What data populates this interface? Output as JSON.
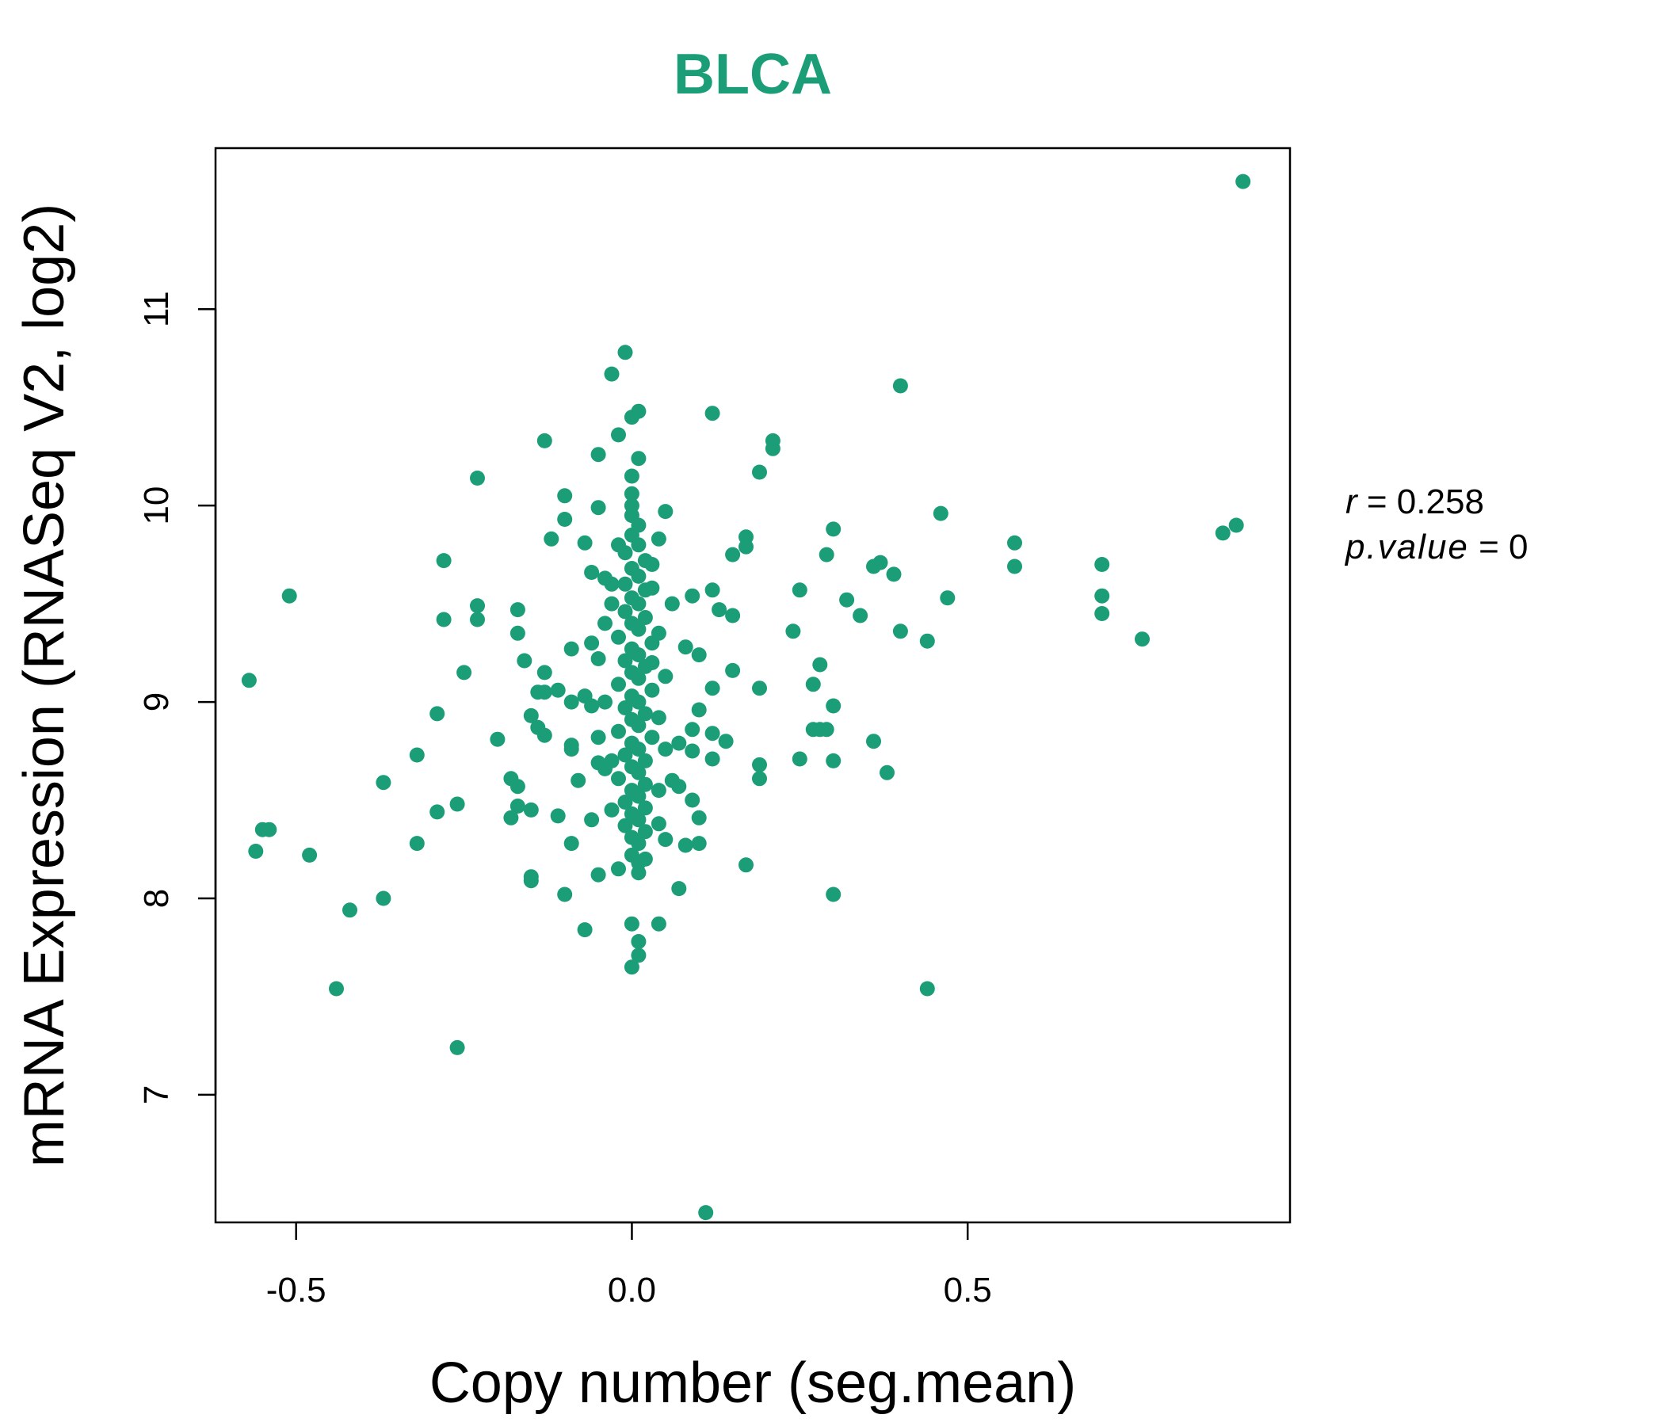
{
  "chart_data": {
    "type": "scatter",
    "title": "BLCA",
    "xlabel": "Copy number (seg.mean)",
    "ylabel": "mRNA Expression (RNASeq V2, log2)",
    "xlim": [
      -0.62,
      0.98
    ],
    "ylim": [
      6.35,
      11.82
    ],
    "xticks": [
      -0.5,
      0.0,
      0.5
    ],
    "xtick_labels": [
      "-0.5",
      "0.0",
      "0.5"
    ],
    "yticks": [
      7,
      8,
      9,
      10,
      11
    ],
    "ytick_labels": [
      "7",
      "8",
      "9",
      "10",
      "11"
    ],
    "grid": false,
    "legend": "none",
    "point_color": "#1b9e77",
    "annotations": {
      "r_label": "r",
      "r_eq": " = 0.258",
      "p_label": "p.value",
      "p_eq": " = 0"
    },
    "points": [
      [
        0.91,
        11.65
      ],
      [
        -0.01,
        10.78
      ],
      [
        -0.03,
        10.67
      ],
      [
        0.4,
        10.61
      ],
      [
        0.12,
        10.47
      ],
      [
        0.01,
        10.48
      ],
      [
        0.0,
        10.45
      ],
      [
        -0.02,
        10.36
      ],
      [
        -0.13,
        10.33
      ],
      [
        0.21,
        10.33
      ],
      [
        0.21,
        10.29
      ],
      [
        -0.05,
        10.26
      ],
      [
        0.01,
        10.24
      ],
      [
        0.19,
        10.17
      ],
      [
        0.0,
        10.15
      ],
      [
        -0.23,
        10.14
      ],
      [
        -0.1,
        10.05
      ],
      [
        0.0,
        10.06
      ],
      [
        0.0,
        10.0
      ],
      [
        -0.05,
        9.99
      ],
      [
        0.05,
        9.97
      ],
      [
        0.46,
        9.96
      ],
      [
        -0.1,
        9.93
      ],
      [
        0.3,
        9.88
      ],
      [
        0.88,
        9.86
      ],
      [
        0.9,
        9.9
      ],
      [
        -0.12,
        9.83
      ],
      [
        0.17,
        9.84
      ],
      [
        -0.07,
        9.81
      ],
      [
        0.57,
        9.81
      ],
      [
        0.17,
        9.79
      ],
      [
        0.04,
        9.83
      ],
      [
        -0.28,
        9.72
      ],
      [
        0.15,
        9.75
      ],
      [
        0.29,
        9.75
      ],
      [
        0.7,
        9.7
      ],
      [
        0.36,
        9.69
      ],
      [
        0.57,
        9.69
      ],
      [
        0.37,
        9.71
      ],
      [
        -0.06,
        9.66
      ],
      [
        0.39,
        9.65
      ],
      [
        -0.04,
        9.63
      ],
      [
        0.25,
        9.57
      ],
      [
        -0.51,
        9.54
      ],
      [
        0.7,
        9.54
      ],
      [
        0.47,
        9.53
      ],
      [
        0.09,
        9.54
      ],
      [
        0.32,
        9.52
      ],
      [
        0.12,
        9.57
      ],
      [
        0.06,
        9.5
      ],
      [
        -0.23,
        9.49
      ],
      [
        -0.17,
        9.47
      ],
      [
        0.15,
        9.44
      ],
      [
        0.34,
        9.44
      ],
      [
        0.7,
        9.45
      ],
      [
        -0.28,
        9.42
      ],
      [
        -0.23,
        9.42
      ],
      [
        0.13,
        9.47
      ],
      [
        0.24,
        9.36
      ],
      [
        0.4,
        9.36
      ],
      [
        -0.17,
        9.35
      ],
      [
        0.76,
        9.32
      ],
      [
        0.44,
        9.31
      ],
      [
        0.08,
        9.28
      ],
      [
        -0.09,
        9.27
      ],
      [
        0.1,
        9.24
      ],
      [
        -0.16,
        9.21
      ],
      [
        0.28,
        9.19
      ],
      [
        -0.25,
        9.15
      ],
      [
        0.15,
        9.16
      ],
      [
        -0.13,
        9.15
      ],
      [
        -0.57,
        9.11
      ],
      [
        0.27,
        9.09
      ],
      [
        0.12,
        9.07
      ],
      [
        0.19,
        9.07
      ],
      [
        -0.14,
        9.05
      ],
      [
        -0.13,
        9.05
      ],
      [
        -0.11,
        9.06
      ],
      [
        -0.07,
        9.03
      ],
      [
        -0.09,
        9.0
      ],
      [
        0.3,
        8.98
      ],
      [
        -0.29,
        8.94
      ],
      [
        -0.15,
        8.93
      ],
      [
        0.1,
        8.96
      ],
      [
        -0.14,
        8.87
      ],
      [
        0.27,
        8.86
      ],
      [
        0.29,
        8.86
      ],
      [
        0.28,
        8.86
      ],
      [
        0.09,
        8.86
      ],
      [
        -0.13,
        8.83
      ],
      [
        0.12,
        8.84
      ],
      [
        0.14,
        8.8
      ],
      [
        0.36,
        8.8
      ],
      [
        -0.2,
        8.81
      ],
      [
        -0.09,
        8.78
      ],
      [
        -0.09,
        8.76
      ],
      [
        0.07,
        8.79
      ],
      [
        0.09,
        8.75
      ],
      [
        -0.32,
        8.73
      ],
      [
        0.25,
        8.71
      ],
      [
        0.12,
        8.71
      ],
      [
        0.3,
        8.7
      ],
      [
        0.19,
        8.68
      ],
      [
        -0.05,
        8.69
      ],
      [
        0.38,
        8.64
      ],
      [
        0.19,
        8.61
      ],
      [
        -0.08,
        8.6
      ],
      [
        -0.37,
        8.59
      ],
      [
        -0.18,
        8.61
      ],
      [
        -0.17,
        8.57
      ],
      [
        0.07,
        8.57
      ],
      [
        0.09,
        8.5
      ],
      [
        -0.26,
        8.48
      ],
      [
        -0.17,
        8.47
      ],
      [
        -0.29,
        8.44
      ],
      [
        -0.15,
        8.45
      ],
      [
        -0.11,
        8.42
      ],
      [
        -0.18,
        8.41
      ],
      [
        -0.06,
        8.4
      ],
      [
        0.1,
        8.41
      ],
      [
        -0.55,
        8.35
      ],
      [
        -0.54,
        8.35
      ],
      [
        -0.32,
        8.28
      ],
      [
        -0.09,
        8.28
      ],
      [
        0.1,
        8.28
      ],
      [
        0.08,
        8.27
      ],
      [
        -0.56,
        8.24
      ],
      [
        -0.48,
        8.22
      ],
      [
        0.17,
        8.17
      ],
      [
        -0.05,
        8.12
      ],
      [
        -0.15,
        8.11
      ],
      [
        -0.15,
        8.09
      ],
      [
        0.01,
        8.13
      ],
      [
        -0.1,
        8.02
      ],
      [
        0.3,
        8.02
      ],
      [
        0.07,
        8.05
      ],
      [
        -0.37,
        8.0
      ],
      [
        -0.42,
        7.94
      ],
      [
        0.0,
        7.87
      ],
      [
        0.04,
        7.87
      ],
      [
        -0.07,
        7.84
      ],
      [
        0.01,
        7.78
      ],
      [
        0.01,
        7.71
      ],
      [
        0.0,
        7.65
      ],
      [
        -0.44,
        7.54
      ],
      [
        0.44,
        7.54
      ],
      [
        -0.26,
        7.24
      ],
      [
        0.11,
        6.4
      ],
      [
        0.0,
        9.95
      ],
      [
        0.01,
        9.9
      ],
      [
        0.0,
        9.85
      ],
      [
        0.01,
        9.8
      ],
      [
        -0.01,
        9.76
      ],
      [
        0.02,
        9.72
      ],
      [
        0.0,
        9.68
      ],
      [
        0.01,
        9.64
      ],
      [
        -0.01,
        9.6
      ],
      [
        0.02,
        9.57
      ],
      [
        0.0,
        9.53
      ],
      [
        0.01,
        9.5
      ],
      [
        -0.01,
        9.46
      ],
      [
        0.02,
        9.43
      ],
      [
        0.0,
        9.4
      ],
      [
        0.01,
        9.37
      ],
      [
        -0.02,
        9.33
      ],
      [
        0.03,
        9.3
      ],
      [
        0.0,
        9.27
      ],
      [
        0.01,
        9.24
      ],
      [
        -0.01,
        9.21
      ],
      [
        0.02,
        9.18
      ],
      [
        0.0,
        9.15
      ],
      [
        0.01,
        9.12
      ],
      [
        -0.02,
        9.09
      ],
      [
        0.03,
        9.06
      ],
      [
        0.0,
        9.03
      ],
      [
        0.01,
        9.0
      ],
      [
        -0.01,
        8.97
      ],
      [
        0.02,
        8.94
      ],
      [
        0.0,
        8.91
      ],
      [
        0.01,
        8.88
      ],
      [
        -0.02,
        8.85
      ],
      [
        0.03,
        8.82
      ],
      [
        0.0,
        8.79
      ],
      [
        0.01,
        8.76
      ],
      [
        -0.01,
        8.73
      ],
      [
        0.02,
        8.7
      ],
      [
        0.0,
        8.67
      ],
      [
        0.01,
        8.64
      ],
      [
        -0.02,
        8.61
      ],
      [
        0.02,
        8.58
      ],
      [
        0.0,
        8.55
      ],
      [
        0.01,
        8.52
      ],
      [
        -0.01,
        8.49
      ],
      [
        0.02,
        8.46
      ],
      [
        0.0,
        8.43
      ],
      [
        0.01,
        8.4
      ],
      [
        -0.01,
        8.37
      ],
      [
        0.02,
        8.34
      ],
      [
        0.0,
        8.31
      ],
      [
        0.01,
        8.28
      ],
      [
        0.0,
        8.22
      ],
      [
        0.01,
        8.18
      ],
      [
        -0.04,
        9.4
      ],
      [
        0.04,
        9.35
      ],
      [
        -0.05,
        9.22
      ],
      [
        0.05,
        9.13
      ],
      [
        -0.04,
        9.0
      ],
      [
        0.04,
        8.92
      ],
      [
        -0.05,
        8.82
      ],
      [
        0.05,
        8.76
      ],
      [
        -0.04,
        8.66
      ],
      [
        0.04,
        8.55
      ],
      [
        -0.03,
        8.45
      ],
      [
        0.04,
        8.38
      ],
      [
        -0.03,
        9.5
      ],
      [
        0.03,
        9.58
      ],
      [
        -0.06,
        9.3
      ],
      [
        0.06,
        8.6
      ],
      [
        -0.06,
        8.98
      ],
      [
        0.05,
        8.3
      ],
      [
        -0.02,
        9.8
      ],
      [
        0.03,
        9.7
      ],
      [
        -0.03,
        9.6
      ],
      [
        0.02,
        8.2
      ],
      [
        -0.02,
        8.15
      ],
      [
        0.03,
        9.2
      ],
      [
        -0.03,
        8.7
      ]
    ]
  }
}
